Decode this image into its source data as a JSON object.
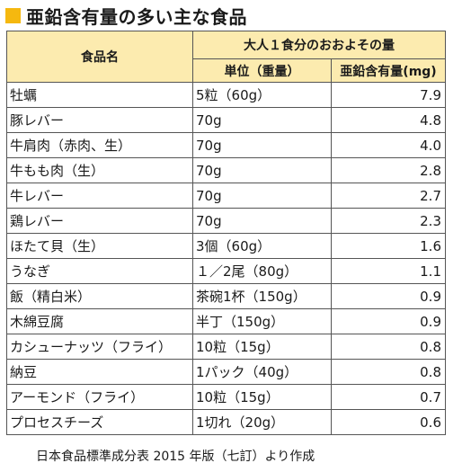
{
  "title": "亜鉛含有量の多い主な食品",
  "colors": {
    "accent": "#f5b80f",
    "header_bg": "#fcebaf"
  },
  "table": {
    "col_food": "食品名",
    "group_header": "大人１食分のおおよその量",
    "col_unit": "単位（重量）",
    "col_zinc": "亜鉛含有量(mg)",
    "rows": [
      {
        "food": "牡蠣",
        "unit": "5粒（60g）",
        "zinc": "7.9"
      },
      {
        "food": "豚レバー",
        "unit": "70g",
        "zinc": "4.8"
      },
      {
        "food": "牛肩肉（赤肉、生）",
        "unit": "70g",
        "zinc": "4.0"
      },
      {
        "food": "牛もも肉（生）",
        "unit": "70g",
        "zinc": "2.8"
      },
      {
        "food": "牛レバー",
        "unit": "70g",
        "zinc": "2.7"
      },
      {
        "food": "鶏レバー",
        "unit": "70g",
        "zinc": "2.3"
      },
      {
        "food": "ほたて貝（生）",
        "unit": "3個（60g）",
        "zinc": "1.6"
      },
      {
        "food": "うなぎ",
        "unit": "１／2尾（80g）",
        "zinc": "1.1"
      },
      {
        "food": "飯（精白米）",
        "unit": "茶碗1杯（150g）",
        "zinc": "0.9"
      },
      {
        "food": "木綿豆腐",
        "unit": "半丁（150g）",
        "zinc": "0.9"
      },
      {
        "food": "カシューナッツ（フライ）",
        "unit": "10粒（15g）",
        "zinc": "0.8"
      },
      {
        "food": "納豆",
        "unit": "1パック（40g）",
        "zinc": "0.8"
      },
      {
        "food": "アーモンド（フライ）",
        "unit": "10粒（15g）",
        "zinc": "0.7"
      },
      {
        "food": "プロセスチーズ",
        "unit": "1切れ（20g）",
        "zinc": "0.6"
      }
    ]
  },
  "source": "日本食品標準成分表 2015 年版（七訂）より作成"
}
